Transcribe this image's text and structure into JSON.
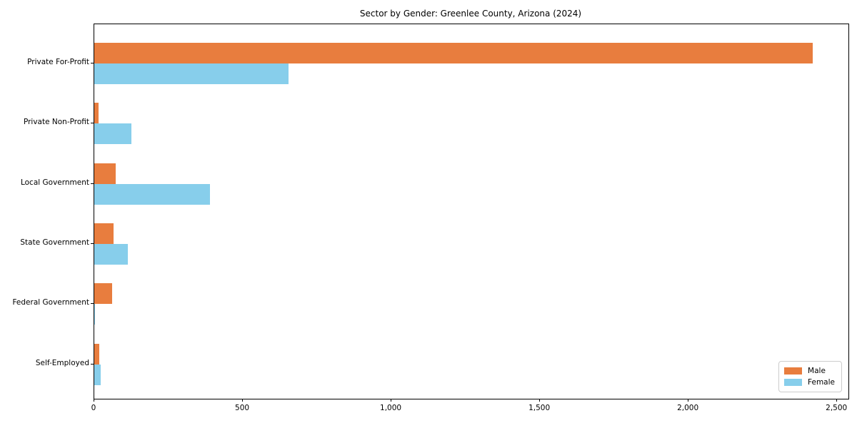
{
  "chart_data": {
    "type": "bar",
    "orientation": "horizontal",
    "title": "Sector by Gender: Greenlee County, Arizona (2024)",
    "categories": [
      "Private For-Profit",
      "Private Non-Profit",
      "Local Government",
      "State Government",
      "Federal Government",
      "Self-Employed"
    ],
    "series": [
      {
        "name": "Male",
        "color": "#e87d3e",
        "values": [
          2417,
          14,
          71,
          64,
          61,
          16
        ]
      },
      {
        "name": "Female",
        "color": "#87ceeb",
        "values": [
          653,
          125,
          389,
          114,
          3,
          22
        ]
      }
    ],
    "xlabel": "",
    "ylabel": "",
    "xlim": [
      0,
      2538
    ],
    "x_ticks": [
      0,
      500,
      1000,
      1500,
      2000,
      2500
    ],
    "x_tick_labels": [
      "0",
      "500",
      "1,000",
      "1,500",
      "2,000",
      "2,500"
    ],
    "grid": false,
    "legend": {
      "position": "lower right",
      "entries": [
        "Male",
        "Female"
      ]
    }
  }
}
